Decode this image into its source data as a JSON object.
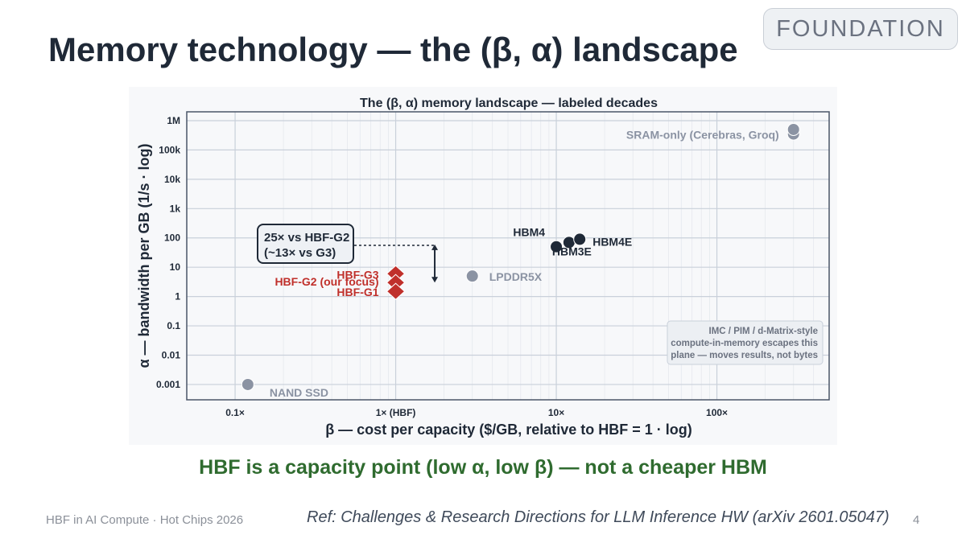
{
  "slide": {
    "title": "Memory technology — the (β, α) landscape",
    "badge": "FOUNDATION",
    "takeaway": "HBF is a capacity point (low α, low β) — not a cheaper HBM",
    "footer_left": "HBF in AI Compute · Hot Chips 2026",
    "footer_ref": "Ref: Challenges & Research Directions for LLM Inference HW (arXiv 2601.05047)",
    "page_number": "4"
  },
  "colors": {
    "hbm": "#1f2937",
    "hbf": "#c0302b",
    "gray": "#8b93a3",
    "accent_green": "#2f6b2f"
  },
  "chart_data": {
    "type": "scatter",
    "title": "The (β, α) memory landscape  —  labeled decades",
    "xlabel": "β  —  cost per capacity  ($/GB, relative to HBF = 1 · log)",
    "ylabel": "α  —  bandwidth per GB  (1/s · log)",
    "x_scale": "log",
    "y_scale": "log",
    "xlim": [
      0.05,
      500
    ],
    "ylim": [
      0.0003,
      2000000
    ],
    "x_ticks": [
      {
        "value": 0.1,
        "label": "0.1×"
      },
      {
        "value": 1,
        "label": "1× (HBF)"
      },
      {
        "value": 10,
        "label": "10×"
      },
      {
        "value": 100,
        "label": "100×"
      }
    ],
    "y_ticks": [
      {
        "value": 1000000,
        "label": "1M"
      },
      {
        "value": 100000,
        "label": "100k"
      },
      {
        "value": 10000,
        "label": "10k"
      },
      {
        "value": 1000,
        "label": "1k"
      },
      {
        "value": 100,
        "label": "100"
      },
      {
        "value": 10,
        "label": "10"
      },
      {
        "value": 1,
        "label": "1"
      },
      {
        "value": 0.1,
        "label": "0.1"
      },
      {
        "value": 0.01,
        "label": "0.01"
      },
      {
        "value": 0.001,
        "label": "0.001"
      }
    ],
    "grid": true,
    "series": [
      {
        "group": "hbm",
        "marker": "circle",
        "points": [
          {
            "label": "HBM4",
            "x": 10,
            "y": 50
          },
          {
            "label": "HBM3E",
            "x": 12,
            "y": 70
          },
          {
            "label": "HBM4E",
            "x": 14,
            "y": 90
          }
        ]
      },
      {
        "group": "hbf",
        "marker": "diamond",
        "points": [
          {
            "label": "HBF-G3",
            "x": 1,
            "y": 6
          },
          {
            "label": "HBF-G2  (our focus)",
            "x": 1,
            "y": 3
          },
          {
            "label": "HBF-G1",
            "x": 1,
            "y": 1.5
          }
        ]
      },
      {
        "group": "other",
        "marker": "circle",
        "points": [
          {
            "label": "SRAM-only (Cerebras, Groq)",
            "x": 300,
            "y": 350000
          },
          {
            "label": "",
            "x": 300,
            "y": 500000
          },
          {
            "label": "LPDDR5X",
            "x": 3,
            "y": 5
          },
          {
            "label": "NAND SSD",
            "x": 0.12,
            "y": 0.001
          }
        ]
      }
    ],
    "annotations": {
      "callout_lines": [
        "25× vs HBF-G2",
        "(~13× vs G3)"
      ],
      "arrow_from_y": 60,
      "arrow_to_y": 3,
      "note_lines": [
        "IMC / PIM / d-Matrix-style",
        "compute-in-memory escapes this",
        "plane — moves results, not bytes"
      ]
    }
  }
}
